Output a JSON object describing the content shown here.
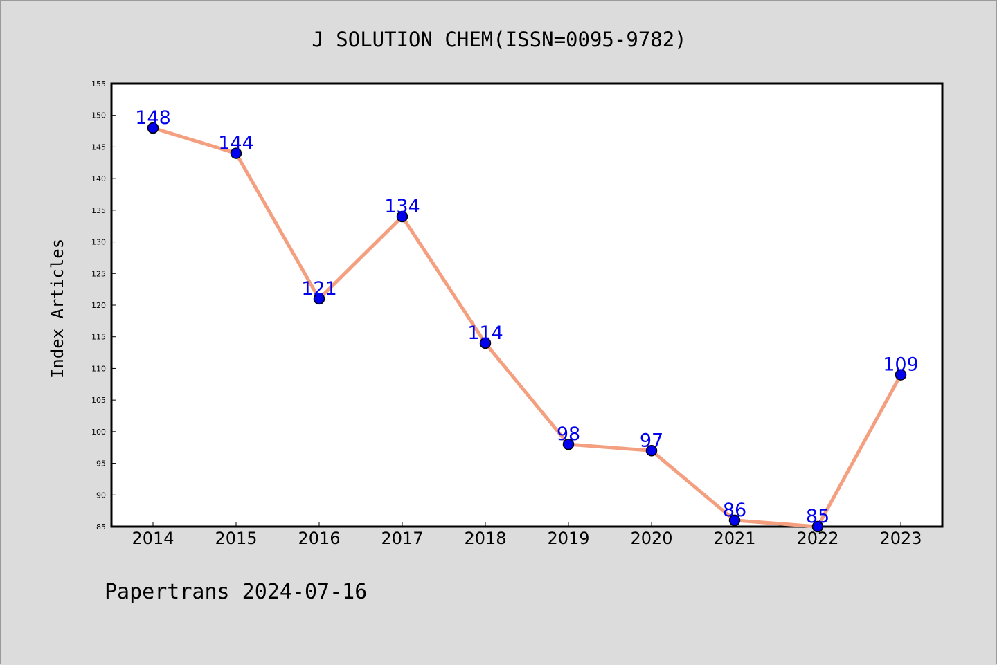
{
  "chart_data": {
    "type": "line",
    "title": "J SOLUTION CHEM(ISSN=0095-9782)",
    "xlabel": "",
    "ylabel": "Index Articles",
    "categories": [
      "2014",
      "2015",
      "2016",
      "2017",
      "2018",
      "2019",
      "2020",
      "2021",
      "2022",
      "2023"
    ],
    "series": [
      {
        "values": [
          148,
          144,
          121,
          134,
          114,
          98,
          97,
          86,
          85,
          109
        ]
      }
    ],
    "ylim": [
      85,
      155
    ],
    "yticks": [
      85,
      90,
      95,
      100,
      105,
      110,
      115,
      120,
      125,
      130,
      135,
      140,
      145,
      150,
      155
    ],
    "grid": false,
    "legend": "none",
    "colors": {
      "line": "#f4a080",
      "marker": "#0000ee",
      "label": "#0000ee"
    }
  },
  "footer": {
    "source": "Papertrans 2024-07-16"
  }
}
